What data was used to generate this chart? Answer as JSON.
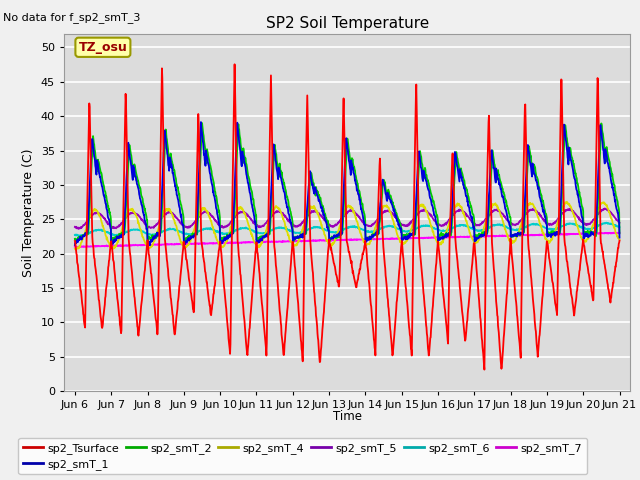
{
  "title": "SP2 Soil Temperature",
  "no_data_label": "No data for f_sp2_smT_3",
  "tz_label": "TZ_osu",
  "ylabel": "Soil Temperature (C)",
  "xlabel": "Time",
  "xlim_days": [
    5.7,
    21.3
  ],
  "ylim": [
    0,
    52
  ],
  "yticks": [
    0,
    5,
    10,
    15,
    20,
    25,
    30,
    35,
    40,
    45,
    50
  ],
  "xtick_labels": [
    "Jun 6",
    "Jun 7",
    "Jun 8",
    "Jun 9",
    "Jun 10",
    "Jun 11",
    "Jun 12",
    "Jun 13",
    "Jun 14",
    "Jun 15",
    "Jun 16",
    "Jun 17",
    "Jun 18",
    "Jun 19",
    "Jun 20",
    "Jun 21"
  ],
  "xtick_positions": [
    6,
    7,
    8,
    9,
    10,
    11,
    12,
    13,
    14,
    15,
    16,
    17,
    18,
    19,
    20,
    21
  ],
  "bg_color": "#dcdcdc",
  "grid_color": "#ffffff",
  "series_colors": {
    "sp2_Tsurface": "#ff0000",
    "sp2_smT_1": "#0000dd",
    "sp2_smT_2": "#00cc00",
    "sp2_smT_4": "#dddd00",
    "sp2_smT_5": "#9900bb",
    "sp2_smT_6": "#00cccc",
    "sp2_smT_7": "#ff00ff"
  }
}
